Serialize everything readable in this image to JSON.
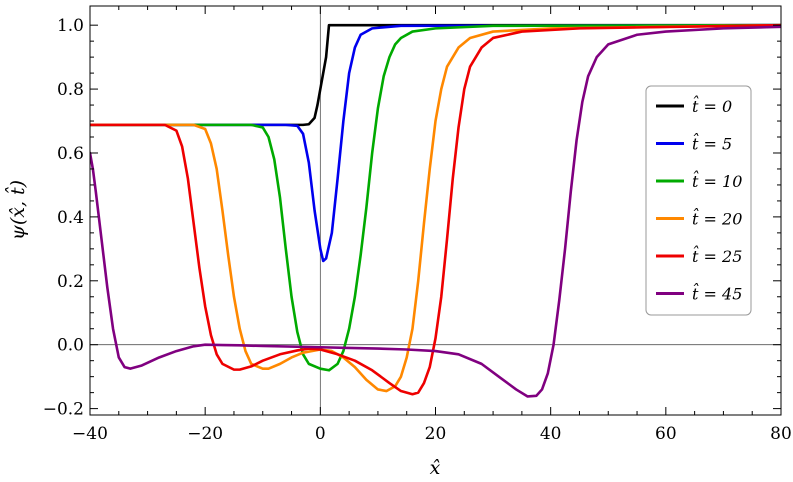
{
  "chart_data": {
    "type": "line",
    "xlabel": "x̂",
    "ylabel": "ψ(x̂, t̂)",
    "xlim": [
      -40,
      80
    ],
    "ylim": [
      -0.22,
      1.06
    ],
    "x_ticks": [
      -40,
      -20,
      0,
      20,
      40,
      60,
      80
    ],
    "x_tick_labels": [
      "−40",
      "−20",
      "0",
      "20",
      "40",
      "60",
      "80"
    ],
    "y_ticks": [
      -0.2,
      0.0,
      0.2,
      0.4,
      0.6,
      0.8,
      1.0
    ],
    "y_tick_labels": [
      "−0.2",
      "0.0",
      "0.2",
      "0.4",
      "0.6",
      "0.8",
      "1.0"
    ],
    "grid": false,
    "legend_position": "right",
    "series": [
      {
        "name": "t̂ = 0",
        "color": "#000000",
        "points": [
          [
            -40,
            0.688
          ],
          [
            -10,
            0.688
          ],
          [
            -3,
            0.688
          ],
          [
            -2,
            0.69
          ],
          [
            -1,
            0.71
          ],
          [
            -0.5,
            0.75
          ],
          [
            0,
            0.8
          ],
          [
            0.5,
            0.85
          ],
          [
            1,
            0.9
          ],
          [
            1.5,
            1.0
          ],
          [
            3,
            1.0
          ],
          [
            80,
            1.0
          ]
        ]
      },
      {
        "name": "t̂ = 5",
        "color": "#0000ee",
        "points": [
          [
            -40,
            0.688
          ],
          [
            -6,
            0.688
          ],
          [
            -4,
            0.685
          ],
          [
            -3,
            0.66
          ],
          [
            -2,
            0.57
          ],
          [
            -1,
            0.42
          ],
          [
            0,
            0.3
          ],
          [
            0.5,
            0.262
          ],
          [
            1,
            0.27
          ],
          [
            2,
            0.35
          ],
          [
            3,
            0.52
          ],
          [
            4,
            0.7
          ],
          [
            5,
            0.85
          ],
          [
            6,
            0.93
          ],
          [
            7,
            0.97
          ],
          [
            9,
            0.99
          ],
          [
            14,
            0.998
          ],
          [
            80,
            1.0
          ]
        ]
      },
      {
        "name": "t̂ = 10",
        "color": "#00aa00",
        "points": [
          [
            -40,
            0.688
          ],
          [
            -12,
            0.688
          ],
          [
            -10,
            0.68
          ],
          [
            -9,
            0.65
          ],
          [
            -8,
            0.58
          ],
          [
            -7,
            0.46
          ],
          [
            -6,
            0.3
          ],
          [
            -5,
            0.15
          ],
          [
            -4,
            0.04
          ],
          [
            -3,
            -0.03
          ],
          [
            -2,
            -0.06
          ],
          [
            0,
            -0.075
          ],
          [
            1.5,
            -0.08
          ],
          [
            3,
            -0.06
          ],
          [
            4,
            -0.02
          ],
          [
            5,
            0.05
          ],
          [
            6,
            0.15
          ],
          [
            7,
            0.28
          ],
          [
            8,
            0.43
          ],
          [
            9,
            0.6
          ],
          [
            10,
            0.74
          ],
          [
            11,
            0.84
          ],
          [
            12,
            0.9
          ],
          [
            13,
            0.94
          ],
          [
            14,
            0.96
          ],
          [
            16,
            0.98
          ],
          [
            20,
            0.99
          ],
          [
            30,
            0.998
          ],
          [
            80,
            1.0
          ]
        ]
      },
      {
        "name": "t̂ = 20",
        "color": "#ff8800",
        "points": [
          [
            -40,
            0.688
          ],
          [
            -22,
            0.688
          ],
          [
            -20,
            0.675
          ],
          [
            -19,
            0.63
          ],
          [
            -18,
            0.55
          ],
          [
            -17,
            0.42
          ],
          [
            -16,
            0.28
          ],
          [
            -15,
            0.15
          ],
          [
            -14,
            0.05
          ],
          [
            -13,
            -0.02
          ],
          [
            -12,
            -0.06
          ],
          [
            -10,
            -0.075
          ],
          [
            -9,
            -0.075
          ],
          [
            -7,
            -0.06
          ],
          [
            -5,
            -0.04
          ],
          [
            -3,
            -0.025
          ],
          [
            0,
            -0.015
          ],
          [
            2,
            -0.02
          ],
          [
            4,
            -0.04
          ],
          [
            6,
            -0.07
          ],
          [
            8,
            -0.11
          ],
          [
            10,
            -0.14
          ],
          [
            11.5,
            -0.145
          ],
          [
            13,
            -0.13
          ],
          [
            14,
            -0.1
          ],
          [
            15,
            -0.04
          ],
          [
            16,
            0.05
          ],
          [
            17,
            0.2
          ],
          [
            18,
            0.38
          ],
          [
            19,
            0.55
          ],
          [
            20,
            0.7
          ],
          [
            21,
            0.8
          ],
          [
            22,
            0.87
          ],
          [
            24,
            0.93
          ],
          [
            26,
            0.96
          ],
          [
            30,
            0.98
          ],
          [
            40,
            0.99
          ],
          [
            80,
            1.0
          ]
        ]
      },
      {
        "name": "t̂ = 25",
        "color": "#ee0000",
        "points": [
          [
            -40,
            0.688
          ],
          [
            -27,
            0.688
          ],
          [
            -25,
            0.67
          ],
          [
            -24,
            0.62
          ],
          [
            -23,
            0.52
          ],
          [
            -22,
            0.38
          ],
          [
            -21,
            0.24
          ],
          [
            -20,
            0.12
          ],
          [
            -19,
            0.03
          ],
          [
            -18,
            -0.03
          ],
          [
            -17,
            -0.06
          ],
          [
            -15,
            -0.078
          ],
          [
            -14,
            -0.078
          ],
          [
            -12,
            -0.068
          ],
          [
            -10,
            -0.05
          ],
          [
            -7,
            -0.03
          ],
          [
            -4,
            -0.018
          ],
          [
            -2,
            -0.012
          ],
          [
            0,
            -0.015
          ],
          [
            3,
            -0.03
          ],
          [
            6,
            -0.05
          ],
          [
            9,
            -0.08
          ],
          [
            12,
            -0.12
          ],
          [
            14,
            -0.145
          ],
          [
            16,
            -0.155
          ],
          [
            17,
            -0.15
          ],
          [
            18,
            -0.12
          ],
          [
            19,
            -0.07
          ],
          [
            20,
            0.02
          ],
          [
            21,
            0.15
          ],
          [
            22,
            0.33
          ],
          [
            23,
            0.52
          ],
          [
            24,
            0.68
          ],
          [
            25,
            0.8
          ],
          [
            26,
            0.87
          ],
          [
            28,
            0.93
          ],
          [
            30,
            0.96
          ],
          [
            35,
            0.98
          ],
          [
            45,
            0.99
          ],
          [
            80,
            1.0
          ]
        ]
      },
      {
        "name": "t̂ = 45",
        "color": "#800080",
        "points": [
          [
            -40,
            0.6
          ],
          [
            -39.5,
            0.55
          ],
          [
            -39,
            0.48
          ],
          [
            -38,
            0.33
          ],
          [
            -37,
            0.18
          ],
          [
            -36,
            0.05
          ],
          [
            -35,
            -0.04
          ],
          [
            -34,
            -0.07
          ],
          [
            -33,
            -0.075
          ],
          [
            -31,
            -0.065
          ],
          [
            -28,
            -0.04
          ],
          [
            -25,
            -0.02
          ],
          [
            -22,
            -0.005
          ],
          [
            -20,
            0.0
          ],
          [
            -17,
            -0.001
          ],
          [
            -14,
            -0.002
          ],
          [
            -10,
            -0.004
          ],
          [
            -5,
            -0.006
          ],
          [
            0,
            -0.008
          ],
          [
            5,
            -0.01
          ],
          [
            10,
            -0.012
          ],
          [
            15,
            -0.015
          ],
          [
            20,
            -0.02
          ],
          [
            24,
            -0.03
          ],
          [
            28,
            -0.06
          ],
          [
            31,
            -0.1
          ],
          [
            34,
            -0.14
          ],
          [
            36,
            -0.162
          ],
          [
            37.5,
            -0.16
          ],
          [
            38.5,
            -0.14
          ],
          [
            39.5,
            -0.09
          ],
          [
            40.5,
            0.0
          ],
          [
            41.5,
            0.14
          ],
          [
            42.5,
            0.3
          ],
          [
            43.5,
            0.48
          ],
          [
            44.5,
            0.64
          ],
          [
            45.5,
            0.76
          ],
          [
            46.5,
            0.84
          ],
          [
            48,
            0.9
          ],
          [
            50,
            0.94
          ],
          [
            55,
            0.97
          ],
          [
            60,
            0.98
          ],
          [
            70,
            0.99
          ],
          [
            80,
            0.995
          ]
        ]
      }
    ]
  }
}
